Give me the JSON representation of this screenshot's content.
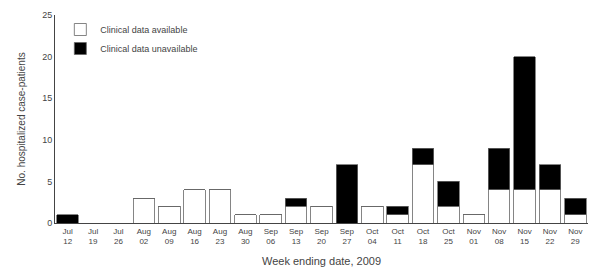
{
  "chart_data": {
    "type": "bar",
    "stacked": true,
    "categories": [
      "Jul\n12",
      "Jul\n19",
      "Jul\n26",
      "Aug\n02",
      "Aug\n09",
      "Aug\n16",
      "Aug\n23",
      "Aug\n30",
      "Sep\n06",
      "Sep\n13",
      "Sep\n20",
      "Sep\n27",
      "Oct\n04",
      "Oct\n11",
      "Oct\n18",
      "Oct\n25",
      "Nov\n01",
      "Nov\n08",
      "Nov\n15",
      "Nov\n22",
      "Nov\n29"
    ],
    "series": [
      {
        "name": "Clinical data available",
        "color": "#ffffff",
        "values": [
          0,
          0,
          0,
          3,
          2,
          4,
          4,
          1,
          1,
          2,
          2,
          0,
          2,
          1,
          7,
          2,
          1,
          4,
          4,
          4,
          1
        ]
      },
      {
        "name": "Clinical data unavailable",
        "color": "#000000",
        "values": [
          1,
          0,
          0,
          0,
          0,
          0,
          0,
          0,
          0,
          1,
          0,
          7,
          0,
          1,
          2,
          3,
          0,
          5,
          16,
          3,
          2
        ]
      }
    ],
    "xlabel": "Week ending date, 2009",
    "ylabel": "No. hospitalized case-patients",
    "ylim": [
      0,
      25
    ],
    "yticks": [
      0,
      5,
      10,
      15,
      20,
      25
    ],
    "grid": false,
    "legend": "upper left"
  }
}
